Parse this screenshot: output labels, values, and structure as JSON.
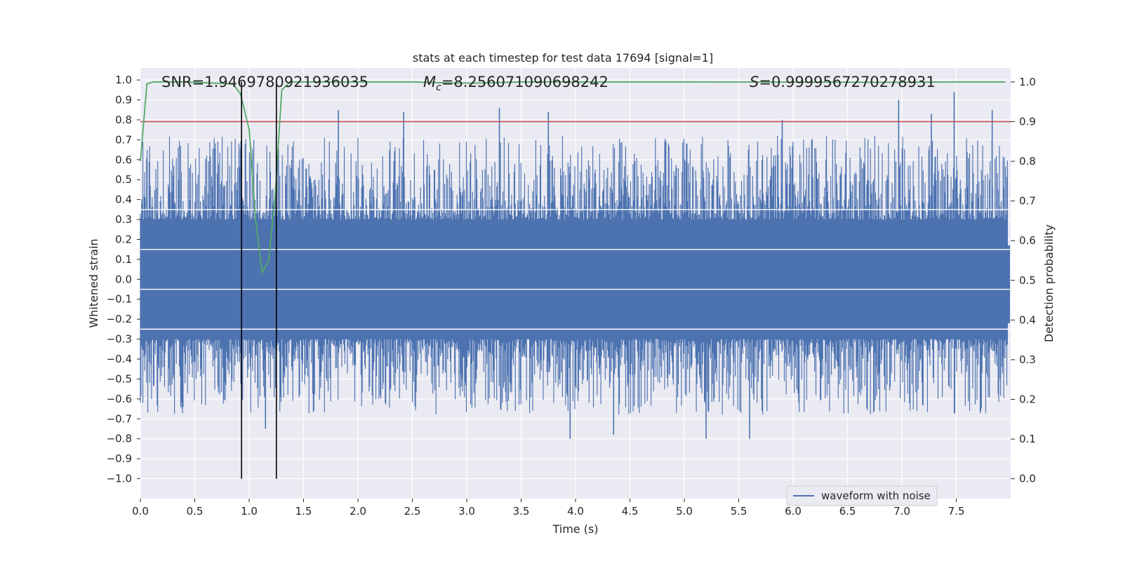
{
  "chart_data": {
    "type": "line",
    "title": "stats at each timestep for test data 17694 [signal=1]",
    "xlabel": "Time (s)",
    "ylabel_left": "Whitened strain",
    "ylabel_right": "Detection probability",
    "xlim": [
      0.0,
      8.0
    ],
    "ylim_left": [
      -1.1,
      1.06
    ],
    "ylim_right": [
      -0.05,
      1.035
    ],
    "x_ticks": [
      "0.0",
      "0.5",
      "1.0",
      "1.5",
      "2.0",
      "2.5",
      "3.0",
      "3.5",
      "4.0",
      "4.5",
      "5.0",
      "5.5",
      "6.0",
      "6.5",
      "7.0",
      "7.5"
    ],
    "x_tick_values": [
      0.0,
      0.5,
      1.0,
      1.5,
      2.0,
      2.5,
      3.0,
      3.5,
      4.0,
      4.5,
      5.0,
      5.5,
      6.0,
      6.5,
      7.0,
      7.5
    ],
    "y_left_ticks": [
      "1.0",
      "0.9",
      "0.8",
      "0.7",
      "0.6",
      "0.5",
      "0.4",
      "0.3",
      "0.2",
      "0.1",
      "0.0",
      "−0.1",
      "−0.2",
      "−0.3",
      "−0.4",
      "−0.5",
      "−0.6",
      "−0.7",
      "−0.8",
      "−0.9",
      "−1.0"
    ],
    "y_left_tick_values": [
      1.0,
      0.9,
      0.8,
      0.7,
      0.6,
      0.5,
      0.4,
      0.3,
      0.2,
      0.1,
      0.0,
      -0.1,
      -0.2,
      -0.3,
      -0.4,
      -0.5,
      -0.6,
      -0.7,
      -0.8,
      -0.9,
      -1.0
    ],
    "y_right_ticks": [
      "1.0",
      "0.9",
      "0.8",
      "0.7",
      "0.6",
      "0.5",
      "0.4",
      "0.3",
      "0.2",
      "0.1",
      "0.0"
    ],
    "y_right_tick_values": [
      1.0,
      0.9,
      0.8,
      0.7,
      0.6,
      0.5,
      0.4,
      0.3,
      0.2,
      0.1,
      0.0
    ],
    "annotations": {
      "snr": "SNR=1.9469780921936035",
      "mc_symbol": "M",
      "mc_subscript": "c",
      "mc_value": "=8.256071090698242",
      "s_symbol": "S",
      "s_value": "=0.9999567270278931"
    },
    "legend": {
      "label": "waveform with noise",
      "location": "lower-right"
    },
    "series": [
      {
        "name": "waveform with noise",
        "color": "#4c72b0",
        "axis": "left",
        "description": "whitened strain noise, core envelope about ±0.3 with spikes to +0.85 / -0.8",
        "core_envelope": [
          -0.3,
          0.3
        ],
        "peaks": [
          {
            "x": 1.82,
            "y": 0.85
          },
          {
            "x": 2.42,
            "y": 0.84
          },
          {
            "x": 3.3,
            "y": 0.86
          },
          {
            "x": 3.75,
            "y": 0.84
          },
          {
            "x": 5.9,
            "y": 0.8
          },
          {
            "x": 6.97,
            "y": 0.9
          },
          {
            "x": 7.27,
            "y": 0.83
          },
          {
            "x": 7.48,
            "y": 0.94
          },
          {
            "x": 7.83,
            "y": 0.85
          }
        ],
        "troughs": [
          {
            "x": 3.95,
            "y": -0.8
          },
          {
            "x": 5.2,
            "y": -0.8
          },
          {
            "x": 5.6,
            "y": -0.8
          },
          {
            "x": 1.15,
            "y": -0.75
          },
          {
            "x": 4.35,
            "y": -0.78
          }
        ]
      },
      {
        "name": "detection probability",
        "color": "#55a868",
        "axis": "right",
        "x": [
          0.0,
          0.06,
          0.12,
          0.4,
          0.85,
          0.92,
          1.0,
          1.06,
          1.12,
          1.18,
          1.24,
          1.3,
          1.38,
          1.6,
          2.0,
          2.5,
          2.9,
          3.1,
          3.5,
          5.0,
          7.0,
          7.5,
          7.95
        ],
        "y": [
          0.8,
          0.995,
          1.0,
          1.0,
          0.995,
          0.97,
          0.88,
          0.65,
          0.52,
          0.55,
          0.72,
          0.98,
          1.0,
          1.0,
          1.0,
          1.0,
          0.997,
          0.997,
          1.0,
          1.0,
          0.999,
          1.0,
          1.0
        ]
      },
      {
        "name": "threshold",
        "color": "#c44e52",
        "axis": "right",
        "y": 0.9
      }
    ],
    "vertical_markers": [
      0.93,
      1.25
    ]
  }
}
